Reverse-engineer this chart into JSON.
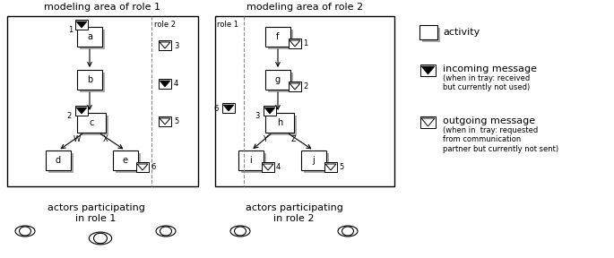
{
  "title1": "modeling area of role 1",
  "title2": "modeling area of role 2",
  "role1_actors_label": "actors participating\nin role 1",
  "role2_actors_label": "actors participating\nin role 2",
  "legend_activity": "activity",
  "legend_incoming": "incoming message",
  "legend_incoming_sub": "(when in tray: received\nbut currently not used)",
  "legend_outgoing": "outgoing message",
  "legend_outgoing_sub": "(when in  tray: requested\nfrom communication\npartner but currently not sent)",
  "bg_color": "#ffffff",
  "box_fill": "#ffffff",
  "box_edge": "#000000",
  "shadow_color": "#aaaaaa",
  "arrow_color": "#000000",
  "dashed_color": "#888888"
}
